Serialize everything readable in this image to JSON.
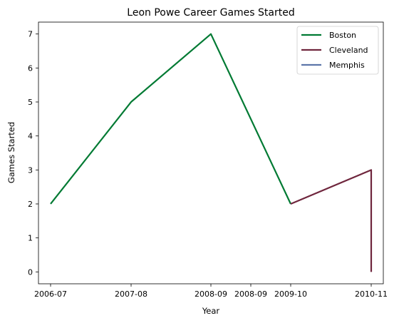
{
  "chart_data": {
    "type": "line",
    "title": "Leon Powe Career Games Started",
    "xlabel": "Year",
    "ylabel": "Games Started",
    "x_tick_labels": [
      "2006-07",
      "2007-08",
      "2008-09",
      "2008-09",
      "2009-10",
      "2010-11"
    ],
    "ylim": [
      -0.35,
      7.35
    ],
    "yticks": [
      0,
      1,
      2,
      3,
      4,
      5,
      6,
      7
    ],
    "grid": false,
    "legend_position": "top-right",
    "series": [
      {
        "name": "Boston",
        "color": "#007A33",
        "points": [
          [
            0,
            2
          ],
          [
            1,
            5
          ],
          [
            2,
            7
          ],
          [
            3,
            2
          ]
        ]
      },
      {
        "name": "Cleveland",
        "color": "#6F263D",
        "points": [
          [
            3,
            2
          ],
          [
            4,
            3
          ],
          [
            4,
            0
          ]
        ]
      },
      {
        "name": "Memphis",
        "color": "#5D76A9",
        "points": []
      }
    ]
  }
}
